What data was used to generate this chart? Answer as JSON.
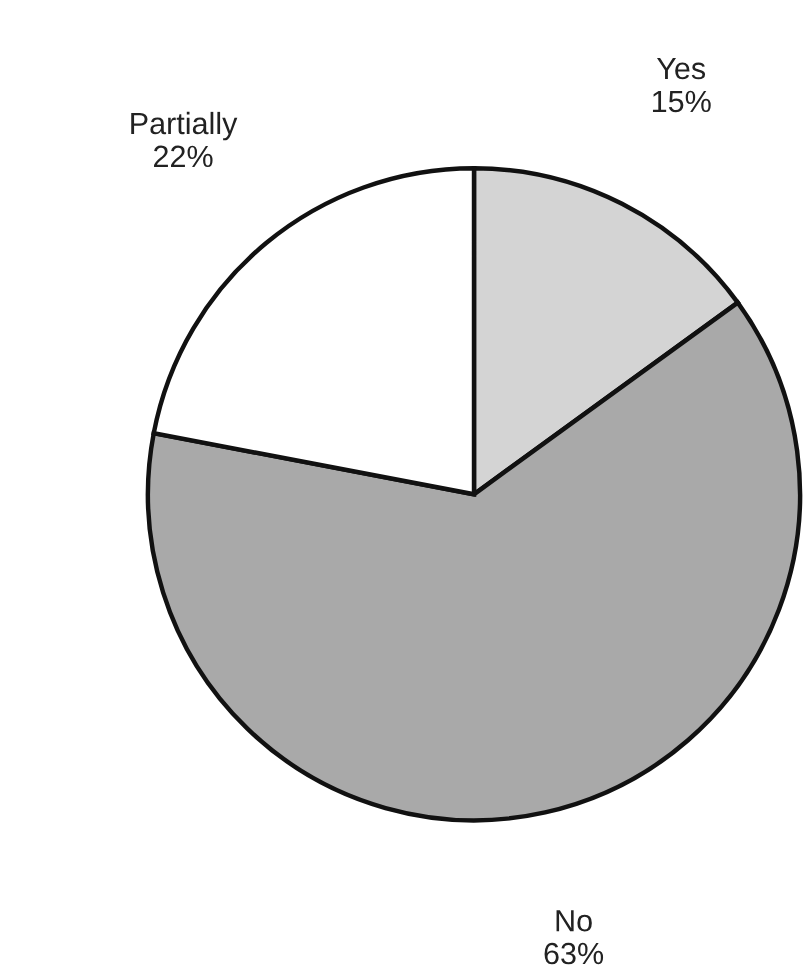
{
  "chart_data": {
    "type": "pie",
    "categories": [
      "Yes",
      "No",
      "Partially"
    ],
    "values": [
      15,
      63,
      22
    ],
    "value_labels": [
      "15%",
      "63%",
      "22%"
    ],
    "colors": [
      "#d4d4d4",
      "#a9a9a9",
      "#ffffff"
    ]
  }
}
